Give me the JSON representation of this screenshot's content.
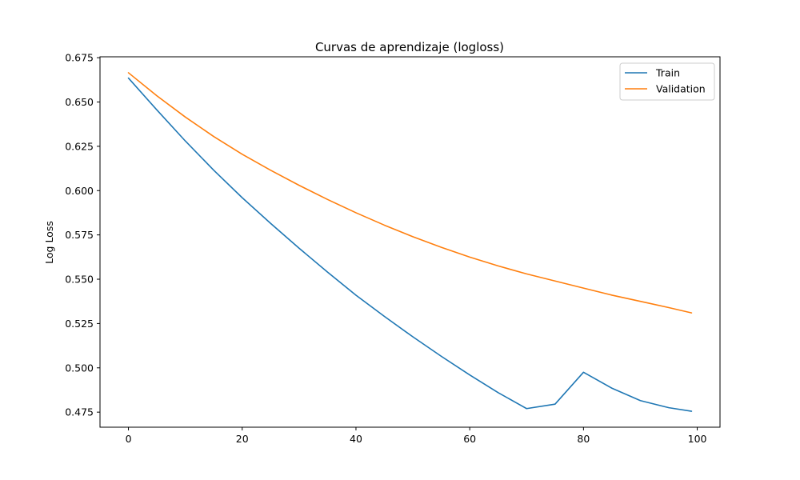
{
  "chart_data": {
    "type": "line",
    "title": "Curvas de aprendizaje (logloss)",
    "xlabel": "",
    "ylabel": "Log Loss",
    "xlim": [
      -5,
      104
    ],
    "ylim": [
      0.4665,
      0.6755
    ],
    "xticks": [
      0,
      20,
      40,
      60,
      80,
      100
    ],
    "xtick_labels": [
      "0",
      "20",
      "40",
      "60",
      "80",
      "100"
    ],
    "yticks": [
      0.475,
      0.5,
      0.525,
      0.55,
      0.575,
      0.6,
      0.625,
      0.65,
      0.675
    ],
    "ytick_labels": [
      "0.475",
      "0.500",
      "0.525",
      "0.550",
      "0.575",
      "0.600",
      "0.625",
      "0.650",
      "0.675"
    ],
    "grid": false,
    "legend_position": "top-right",
    "x": [
      0,
      5,
      10,
      15,
      20,
      25,
      30,
      35,
      40,
      45,
      50,
      55,
      60,
      65,
      70,
      75,
      80,
      85,
      90,
      95,
      99
    ],
    "series": [
      {
        "name": "Train",
        "color": "#1f77b4",
        "values": [
          0.6635,
          0.6455,
          0.628,
          0.6115,
          0.596,
          0.5815,
          0.5675,
          0.554,
          0.541,
          0.529,
          0.5175,
          0.5065,
          0.496,
          0.486,
          0.477,
          0.4795,
          0.4975,
          0.4885,
          0.4815,
          0.4775,
          0.4755
        ]
      },
      {
        "name": "Validation",
        "color": "#ff7f0e",
        "values": [
          0.6665,
          0.6535,
          0.6415,
          0.6305,
          0.6205,
          0.6115,
          0.603,
          0.595,
          0.5875,
          0.5805,
          0.574,
          0.568,
          0.5625,
          0.5575,
          0.553,
          0.549,
          0.545,
          0.541,
          0.5375,
          0.534,
          0.531
        ]
      }
    ]
  }
}
